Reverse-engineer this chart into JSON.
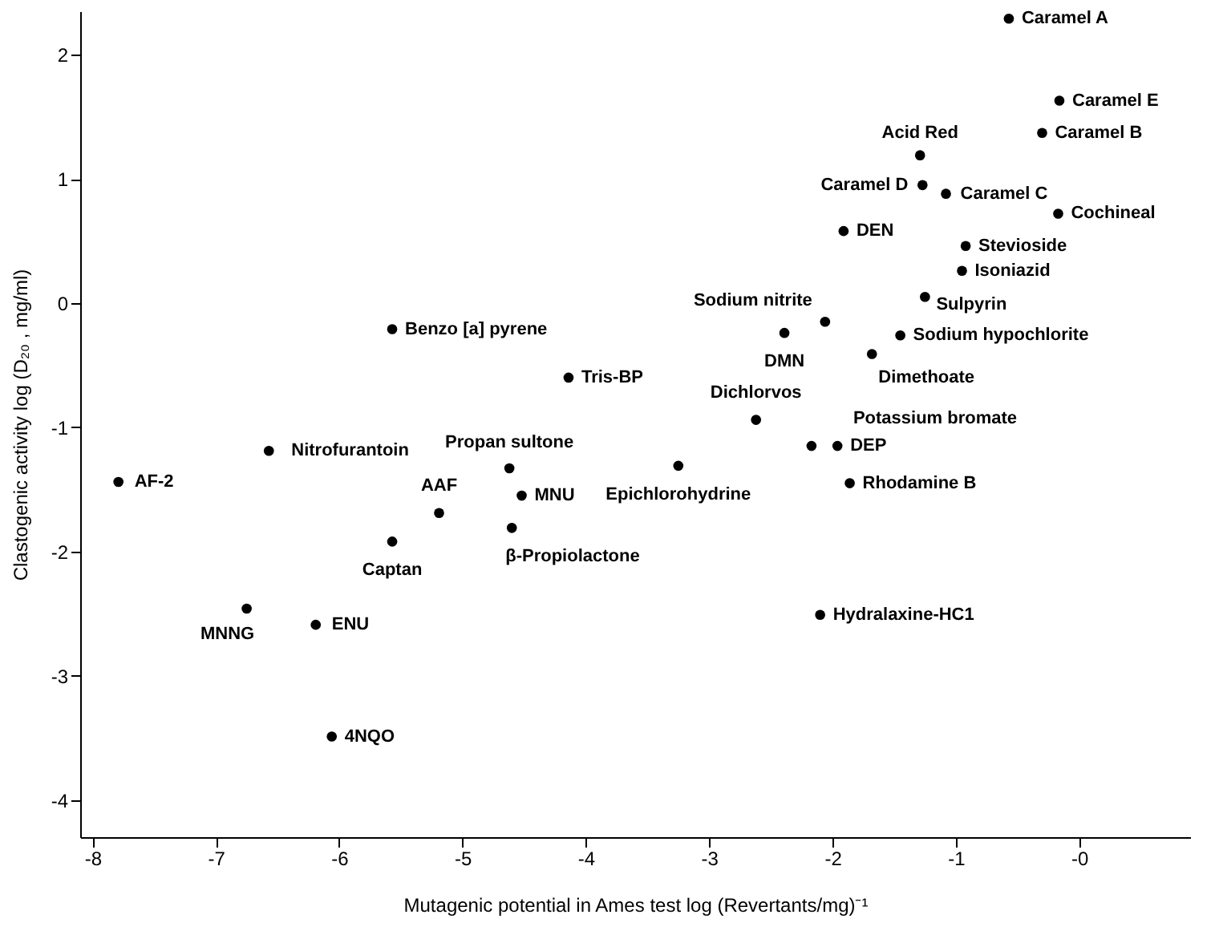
{
  "chart_data": {
    "type": "scatter",
    "xlabel": "Mutagenic potential in Ames test log (Revertants/mg)⁻¹",
    "ylabel": "Clastogenic activity log (D₂₀ , mg/ml)",
    "xlim": [
      -8.1,
      0.9
    ],
    "ylim": [
      -4.3,
      2.35
    ],
    "xticks": [
      {
        "value": -8,
        "label": "-8"
      },
      -7,
      -6,
      -5,
      -4,
      -3,
      -2,
      -1,
      {
        "value": 0,
        "label": "-0"
      }
    ],
    "yticks": [
      -4,
      -3,
      -2,
      -1,
      0,
      1,
      2
    ],
    "grid": false,
    "marker": "circle",
    "series": [
      {
        "color": "#000000",
        "x": [
          -0.57,
          -0.16,
          -0.3,
          -1.29,
          -1.27,
          -1.08,
          -0.17,
          -1.91,
          -0.92,
          -0.95,
          -1.25,
          -2.06,
          -2.39,
          -1.45,
          -1.68,
          -2.62,
          -1.96,
          -2.17,
          -3.25,
          -1.86,
          -2.1,
          -5.57,
          -4.14,
          -6.57,
          -4.62,
          -7.79,
          -4.52,
          -5.19,
          -4.6,
          -5.57,
          -6.75,
          -6.19,
          -6.06
        ],
        "values": [
          2.29,
          1.63,
          1.37,
          1.19,
          0.95,
          0.88,
          0.72,
          0.58,
          0.46,
          0.26,
          0.05,
          -0.15,
          -0.24,
          -0.26,
          -0.41,
          -0.94,
          -1.15,
          -1.15,
          -1.31,
          -1.45,
          -2.51,
          -0.21,
          -0.6,
          -1.19,
          -1.33,
          -1.44,
          -1.55,
          -1.69,
          -1.81,
          -1.92,
          -2.46,
          -2.59,
          -3.49
        ]
      }
    ],
    "annotations": [
      {
        "text": "Caramel A",
        "x": -0.57,
        "y": 2.29
      },
      {
        "text": "Caramel E",
        "x": -0.16,
        "y": 1.63
      },
      {
        "text": "Caramel B",
        "x": -0.3,
        "y": 1.37
      },
      {
        "text": "Acid Red",
        "x": -1.29,
        "y": 1.19
      },
      {
        "text": "Caramel D",
        "x": -1.27,
        "y": 0.95
      },
      {
        "text": "Caramel C",
        "x": -1.08,
        "y": 0.88
      },
      {
        "text": "Cochineal",
        "x": -0.17,
        "y": 0.72
      },
      {
        "text": "DEN",
        "x": -1.91,
        "y": 0.58
      },
      {
        "text": "Stevioside",
        "x": -0.92,
        "y": 0.46
      },
      {
        "text": "Isoniazid",
        "x": -0.95,
        "y": 0.26
      },
      {
        "text": "Sulpyrin",
        "x": -1.25,
        "y": 0.05
      },
      {
        "text": "Sodium nitrite",
        "x": -2.06,
        "y": -0.15
      },
      {
        "text": "DMN",
        "x": -2.39,
        "y": -0.24
      },
      {
        "text": "Sodium hypochlorite",
        "x": -1.45,
        "y": -0.26
      },
      {
        "text": "Dimethoate",
        "x": -1.68,
        "y": -0.41
      },
      {
        "text": "Dichlorvos",
        "x": -2.62,
        "y": -0.94
      },
      {
        "text": "DEP",
        "x": -1.96,
        "y": -1.15
      },
      {
        "text": "Potassium bromate",
        "x": -2.17,
        "y": -1.15
      },
      {
        "text": "Epichlorohydrine",
        "x": -3.25,
        "y": -1.31
      },
      {
        "text": "Rhodamine B",
        "x": -1.86,
        "y": -1.45
      },
      {
        "text": "Hydralaxine-HC1",
        "x": -2.1,
        "y": -2.51
      },
      {
        "text": "Benzo [a] pyrene",
        "x": -5.57,
        "y": -0.21
      },
      {
        "text": "Tris-BP",
        "x": -4.14,
        "y": -0.6
      },
      {
        "text": "Nitrofurantoin",
        "x": -6.57,
        "y": -1.19
      },
      {
        "text": "Propan sultone",
        "x": -4.62,
        "y": -1.33
      },
      {
        "text": "AF-2",
        "x": -7.79,
        "y": -1.44
      },
      {
        "text": "MNU",
        "x": -4.52,
        "y": -1.55
      },
      {
        "text": "AAF",
        "x": -5.19,
        "y": -1.69
      },
      {
        "text": "β-Propiolactone",
        "x": -4.6,
        "y": -1.81
      },
      {
        "text": "Captan",
        "x": -5.57,
        "y": -1.92
      },
      {
        "text": "MNNG",
        "x": -6.75,
        "y": -2.46
      },
      {
        "text": "ENU",
        "x": -6.19,
        "y": -2.59
      },
      {
        "text": "4NQO",
        "x": -6.06,
        "y": -3.49
      }
    ]
  }
}
